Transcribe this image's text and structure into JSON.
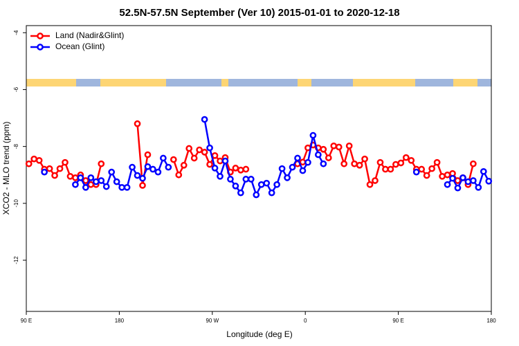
{
  "chart_data": {
    "type": "line",
    "title": "52.5N-57.5N September (Ver 10)   2015-01-01 to 2020-12-18",
    "x_label": "Longitude (deg E)",
    "y_label": "XCO2 - MLO trend (ppm)",
    "x": [
      92.5,
      97.5,
      102.5,
      107.5,
      112.5,
      117.5,
      122.5,
      127.5,
      132.5,
      137.5,
      142.5,
      147.5,
      152.5,
      157.5,
      162.5,
      167.5,
      172.5,
      177.5,
      182.5,
      187.5,
      192.5,
      197.5,
      202.5,
      207.5,
      212.5,
      217.5,
      222.5,
      227.5,
      232.5,
      237.5,
      242.5,
      247.5,
      252.5,
      257.5,
      262.5,
      267.5,
      272.5,
      277.5,
      282.5,
      287.5,
      292.5,
      297.5,
      302.5,
      307.5,
      312.5,
      317.5,
      322.5,
      327.5,
      332.5,
      337.5,
      342.5,
      347.5,
      352.5,
      357.5,
      362.5,
      367.5,
      372.5,
      377.5,
      382.5,
      387.5,
      392.5,
      397.5,
      402.5,
      407.5,
      412.5,
      417.5,
      422.5,
      427.5,
      432.5,
      437.5,
      442.5,
      447.5,
      452.5,
      457.5,
      462.5,
      467.5,
      472.5,
      477.5,
      482.5,
      487.5,
      492.5,
      497.5,
      502.5,
      507.5,
      512.5,
      517.5,
      522.5,
      527.5,
      532.5,
      537.5
    ],
    "series": [
      {
        "name": "Land (Nadir&Glint)",
        "color": "#ff0000",
        "values": [
          -8.61,
          -8.44,
          -8.49,
          -8.8,
          -8.78,
          -9.02,
          -8.78,
          -8.56,
          -9.05,
          -9.1,
          -9.0,
          -9.2,
          -9.34,
          -9.34,
          -8.61,
          null,
          null,
          null,
          null,
          null,
          null,
          -7.2,
          -9.37,
          -8.29,
          null,
          null,
          null,
          null,
          -8.46,
          -9.0,
          -8.66,
          -8.07,
          -8.41,
          -8.12,
          -8.2,
          -8.63,
          -8.32,
          -8.51,
          -8.39,
          -8.9,
          -8.76,
          -8.83,
          -8.8,
          null,
          null,
          null,
          null,
          null,
          null,
          null,
          null,
          null,
          -8.61,
          -8.55,
          -8.05,
          -7.95,
          -8.05,
          -8.1,
          -8.4,
          -7.98,
          -8.02,
          -8.61,
          -7.98,
          -8.61,
          -8.66,
          -8.44,
          -9.34,
          -9.2,
          -8.56,
          -8.8,
          -8.8,
          -8.63,
          -8.58,
          -8.39,
          -8.49,
          -8.8,
          -8.8,
          -9.02,
          -8.78,
          -8.56,
          -9.05,
          -9.0,
          -8.95,
          -9.2,
          -9.1,
          -9.34,
          -8.61,
          null,
          null,
          null
        ]
      },
      {
        "name": "Ocean (Glint)",
        "color": "#0000ff",
        "values": [
          null,
          null,
          null,
          -8.9,
          null,
          null,
          null,
          null,
          null,
          -9.34,
          -9.1,
          -9.44,
          -9.1,
          -9.24,
          -9.2,
          -9.41,
          -8.9,
          -9.24,
          -9.44,
          -9.44,
          -8.73,
          -9.02,
          -9.12,
          -8.71,
          -8.8,
          -8.9,
          -8.41,
          -8.73,
          null,
          null,
          null,
          null,
          null,
          null,
          -7.05,
          -8.05,
          -8.76,
          -9.05,
          -8.51,
          -9.15,
          -9.39,
          -9.63,
          -9.15,
          -9.15,
          -9.7,
          -9.34,
          -9.29,
          -9.63,
          -9.34,
          -8.78,
          -9.1,
          -8.73,
          -8.41,
          -8.85,
          -8.56,
          -7.61,
          -8.29,
          -8.61,
          null,
          null,
          null,
          null,
          null,
          null,
          null,
          null,
          null,
          null,
          null,
          null,
          null,
          null,
          null,
          null,
          null,
          -8.9,
          null,
          null,
          null,
          null,
          null,
          -9.34,
          -9.12,
          -9.46,
          -9.1,
          -9.24,
          -9.2,
          -9.44,
          -8.88,
          -9.22
        ]
      }
    ],
    "xlim": [
      90,
      540
    ],
    "xticks": [
      {
        "value": 90,
        "label": "90 E"
      },
      180,
      {
        "value": 270,
        "label": "90 W"
      },
      {
        "value": 360,
        "label": "0"
      },
      {
        "value": 450,
        "label": "90 E"
      },
      {
        "value": 540,
        "label": "180"
      }
    ],
    "ylim": [
      -13.8,
      -3.75
    ],
    "yticks": [
      -4,
      -6,
      -8,
      -10,
      -12
    ],
    "legend": "top-left"
  }
}
